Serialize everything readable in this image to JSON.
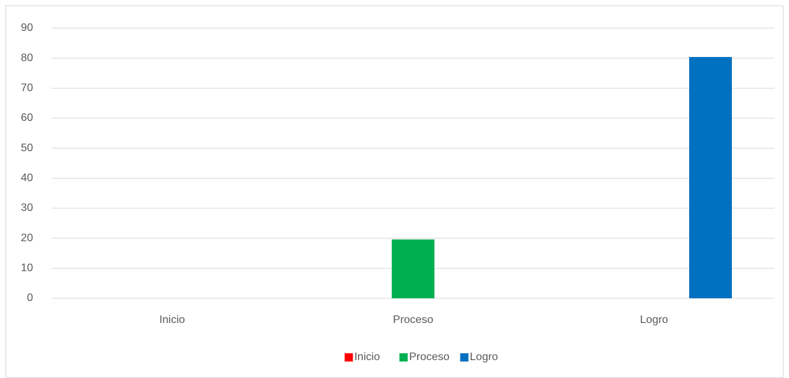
{
  "chart_data": {
    "type": "bar",
    "categories": [
      "Inicio",
      "Proceso",
      "Logro"
    ],
    "series": [
      {
        "name": "Inicio",
        "color": "#ff0000",
        "values": [
          0,
          0,
          0
        ]
      },
      {
        "name": "Proceso",
        "color": "#00b050",
        "values": [
          0,
          19.6,
          0
        ]
      },
      {
        "name": "Logro",
        "color": "#0070c0",
        "values": [
          0,
          0,
          80.4
        ]
      }
    ],
    "ylim": [
      0,
      90
    ],
    "yticks": [
      0,
      10,
      20,
      30,
      40,
      50,
      60,
      70,
      80,
      90
    ],
    "grid": true,
    "legend": "bottom"
  }
}
